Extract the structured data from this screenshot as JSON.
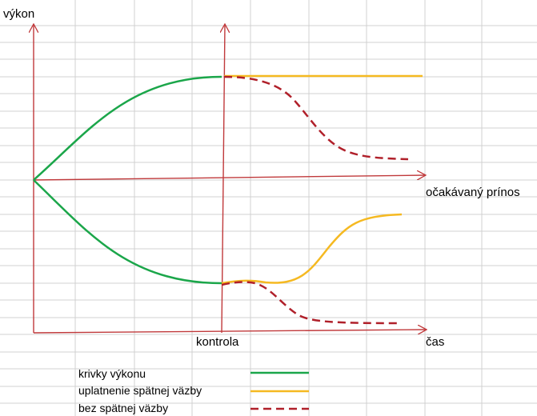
{
  "labels": {
    "y_axis": "výkon",
    "x_axis": "čas",
    "middle_axis": "očakávaný prínos",
    "checkpoint": "kontrola"
  },
  "legend": [
    {
      "label": "krivky výkonu",
      "color": "#1ba64a",
      "style": "solid"
    },
    {
      "label": "uplatnenie spätnej väzby",
      "color": "#f5b921",
      "style": "solid"
    },
    {
      "label": "bez spätnej väzby",
      "color": "#b0202a",
      "style": "dashed"
    }
  ],
  "colors": {
    "axis": "#c0393b",
    "grid": "#d0d0d0",
    "performance": "#1ba64a",
    "feedback": "#f5b921",
    "no_feedback": "#b0202a"
  }
}
